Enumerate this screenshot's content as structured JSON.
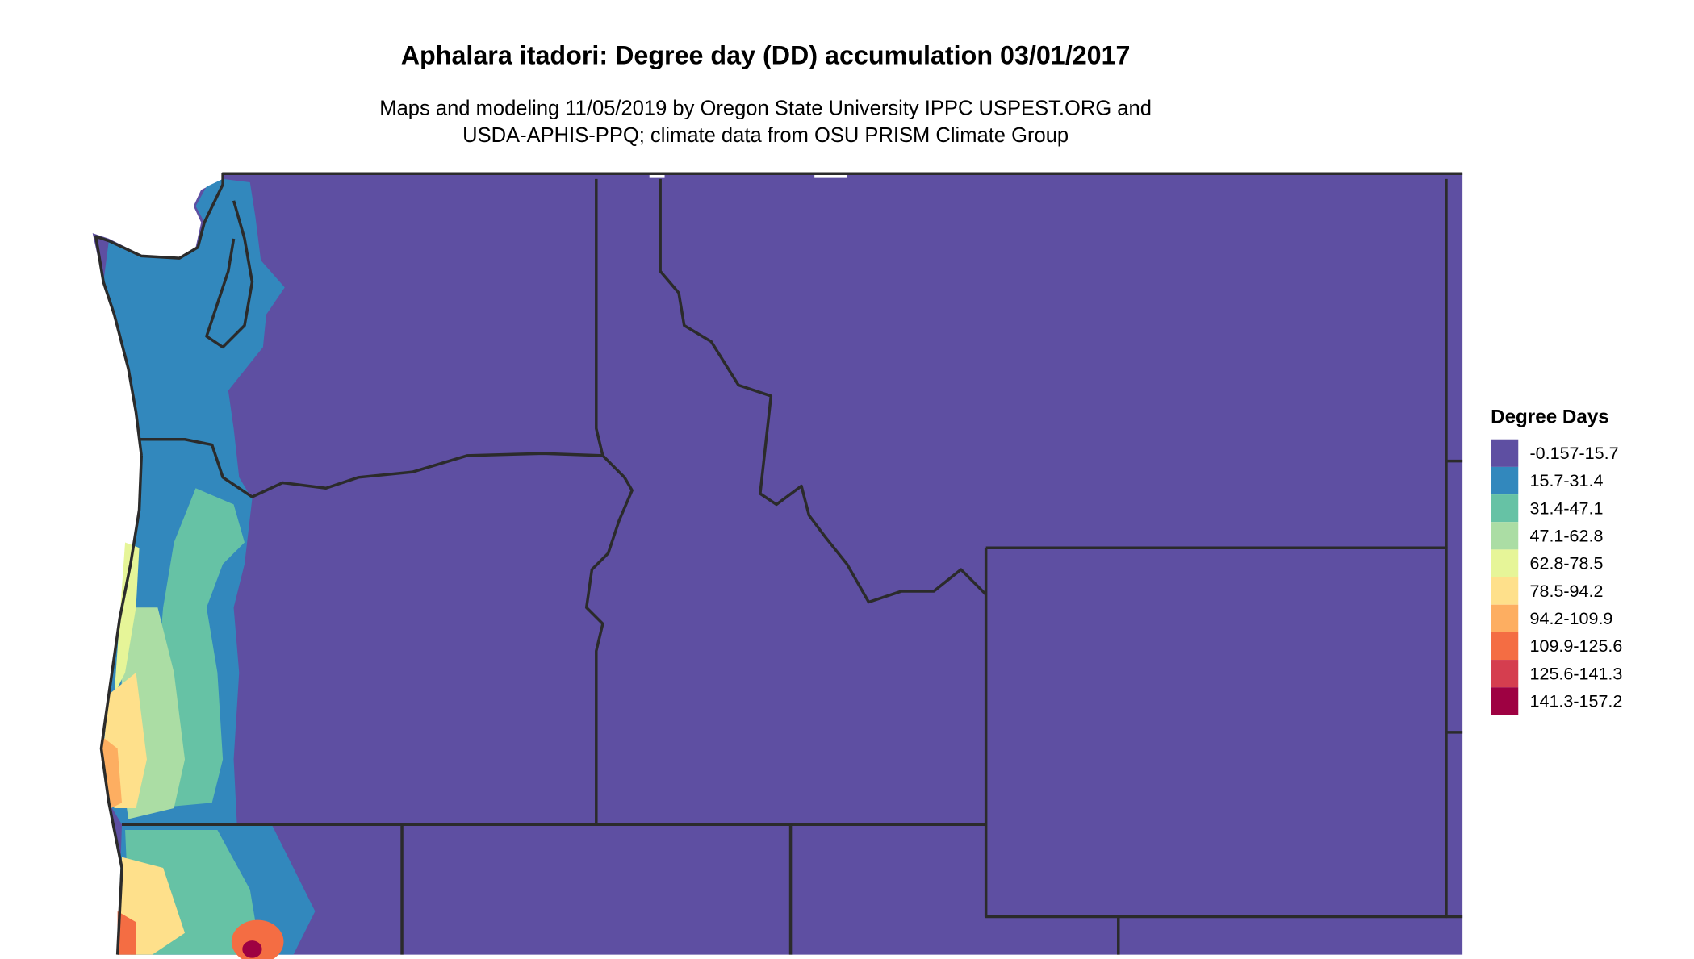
{
  "title": "Aphalara itadori: Degree day (DD) accumulation 03/01/2017",
  "subtitle_line1": "Maps and modeling 11/05/2019 by Oregon State University IPPC USPEST.ORG and",
  "subtitle_line2": "USDA-APHIS-PPQ; climate data from OSU PRISM Climate Group",
  "legend": {
    "title": "Degree Days",
    "items": [
      {
        "label": "-0.157-15.7",
        "color": "#5E4FA2"
      },
      {
        "label": "15.7-31.4",
        "color": "#3288BD"
      },
      {
        "label": "31.4-47.1",
        "color": "#66C2A5"
      },
      {
        "label": "47.1-62.8",
        "color": "#ABDDA4"
      },
      {
        "label": "62.8-78.5",
        "color": "#E6F598"
      },
      {
        "label": "78.5-94.2",
        "color": "#FEE08B"
      },
      {
        "label": "94.2-109.9",
        "color": "#FDAE61"
      },
      {
        "label": "109.9-125.6",
        "color": "#F46D43"
      },
      {
        "label": "125.6-141.3",
        "color": "#D53E4F"
      },
      {
        "label": "141.3-157.2",
        "color": "#9E0142"
      }
    ]
  }
}
